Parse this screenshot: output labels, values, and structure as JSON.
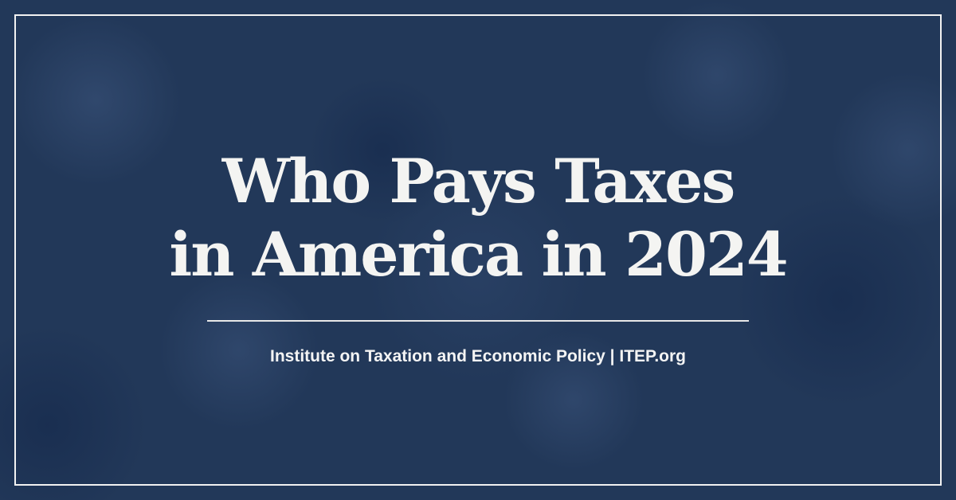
{
  "title_line1": "Who Pays Taxes",
  "title_line2": "in America in 2024",
  "subtitle": "Institute on Taxation and Economic Policy | ITEP.org",
  "colors": {
    "background": "#223859",
    "text": "#f4f4f2"
  }
}
